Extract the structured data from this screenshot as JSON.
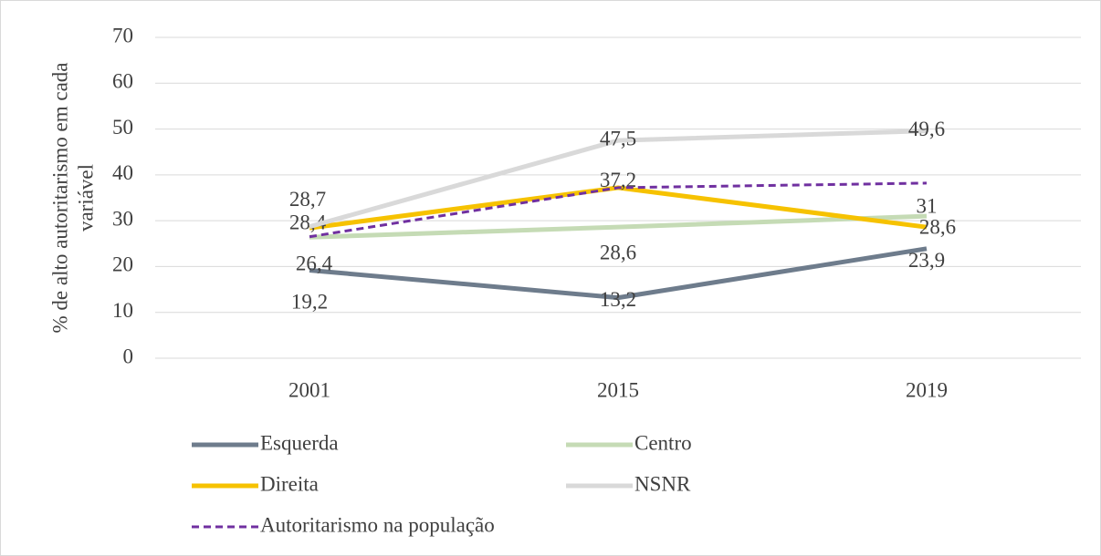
{
  "chart_data": {
    "type": "line",
    "y_label": [
      "% de alto autoritarismo em cada",
      "variável"
    ],
    "categories": [
      "2001",
      "2015",
      "2019"
    ],
    "ylim": [
      0,
      70
    ],
    "yticks": [
      0,
      10,
      20,
      30,
      40,
      50,
      60,
      70
    ],
    "grid": true,
    "legend": "bottom",
    "series": [
      {
        "name": "Esquerda",
        "color": "#6e7c8c",
        "values": [
          19.2,
          13.2,
          23.9
        ],
        "value_labels": [
          "19,2",
          "13,2",
          "23,9"
        ]
      },
      {
        "name": "Centro",
        "color": "#c5dbb5",
        "values": [
          26.4,
          28.6,
          31
        ],
        "value_labels": [
          "26,4",
          "28,6",
          "31"
        ]
      },
      {
        "name": "Direita",
        "color": "#f6c200",
        "values": [
          28.4,
          37.2,
          28.6
        ],
        "value_labels": [
          "28,4",
          "37,2",
          "28,6"
        ]
      },
      {
        "name": "NSNR",
        "color": "#d9d9d9",
        "values": [
          28.7,
          47.5,
          49.6
        ],
        "value_labels": [
          "28,7",
          "47,5",
          "49,6"
        ]
      },
      {
        "name": "Autoritarismo na população",
        "color": "#7030a0",
        "dashed": true,
        "values": [
          26.5,
          37.2,
          38.2
        ]
      }
    ]
  }
}
